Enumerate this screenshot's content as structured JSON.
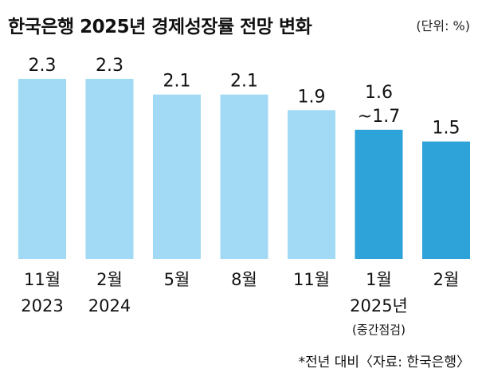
{
  "title": "한국은행 2025년 경제성장률 전망 변화",
  "unit": "(단위: %)",
  "note": "*전년 대비〈자료: 한국은행〉",
  "colors": {
    "light": "#a2d9f4",
    "dark": "#2ea3d9"
  },
  "chart_data": {
    "type": "bar",
    "title": "한국은행 2025년 경제성장률 전망 변화",
    "ylabel": "",
    "ylim": [
      0,
      2.3
    ],
    "categories": [
      {
        "lines": [
          "11월",
          "2023"
        ]
      },
      {
        "lines": [
          "2월",
          "2024"
        ]
      },
      {
        "lines": [
          "5월"
        ]
      },
      {
        "lines": [
          "8월"
        ]
      },
      {
        "lines": [
          "11월"
        ]
      },
      {
        "lines": [
          "1월",
          "2025년"
        ],
        "sub": "(중간점검)"
      },
      {
        "lines": [
          "2월"
        ]
      }
    ],
    "series": [
      {
        "values": [
          2.3,
          2.3,
          2.1,
          2.1,
          1.9,
          1.65,
          1.5
        ],
        "labels": [
          [
            "2.3"
          ],
          [
            "2.3"
          ],
          [
            "2.1"
          ],
          [
            "2.1"
          ],
          [
            "1.9"
          ],
          [
            "1.6",
            "~1.7"
          ],
          [
            "1.5"
          ]
        ],
        "highlight": [
          false,
          false,
          false,
          false,
          false,
          true,
          true
        ]
      }
    ]
  }
}
